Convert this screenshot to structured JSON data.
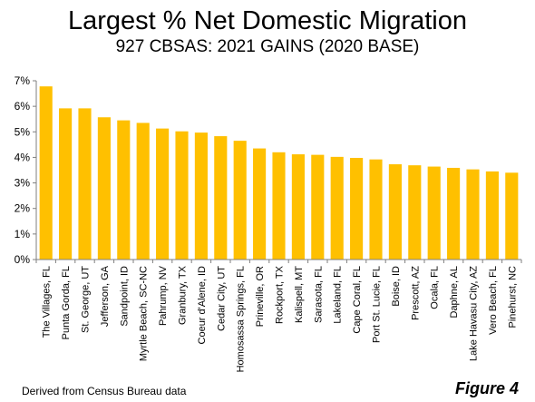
{
  "title": "Largest % Net Domestic Migration",
  "subtitle": "927 CBSAS: 2021 GAINS (2020 BASE)",
  "source": "Derived from Census Bureau data",
  "figure_label": "Figure 4",
  "colors": {
    "bar": "#FFC000",
    "axis": "#7f7f7f"
  },
  "chart_data": {
    "type": "bar",
    "title": "Largest % Net Domestic Migration",
    "subtitle": "927 CBSAS: 2021 GAINS (2020 BASE)",
    "xlabel": "",
    "ylabel": "",
    "ylim": [
      0,
      7
    ],
    "yticks": [
      "0%",
      "1%",
      "2%",
      "3%",
      "4%",
      "5%",
      "6%",
      "7%"
    ],
    "grid": false,
    "categories": [
      "The Villages, FL",
      "Punta Gorda, FL",
      "St. George, UT",
      "Jefferson, GA",
      "Sandpoint, ID",
      "Myrtle Beach, SC-NC",
      "Pahrump, NV",
      "Granbury, TX",
      "Coeur d'Alene, ID",
      "Cedar City, UT",
      "Homosassa Springs, FL",
      "Prineville, OR",
      "Rockport, TX",
      "Kalispell, MT",
      "Sarasota, FL",
      "Lakeland, FL",
      "Cape Coral, FL",
      "Port St. Lucie, FL",
      "Boise, ID",
      "Prescott, AZ",
      "Ocala, FL",
      "Daphne, AL",
      "Lake Havasu City, AZ",
      "Vero Beach, FL",
      "Pinehurst, NC"
    ],
    "values": [
      6.78,
      5.92,
      5.92,
      5.57,
      5.45,
      5.35,
      5.13,
      5.02,
      4.97,
      4.83,
      4.65,
      4.35,
      4.2,
      4.12,
      4.1,
      4.02,
      3.98,
      3.92,
      3.73,
      3.69,
      3.64,
      3.59,
      3.53,
      3.45,
      3.4
    ]
  }
}
